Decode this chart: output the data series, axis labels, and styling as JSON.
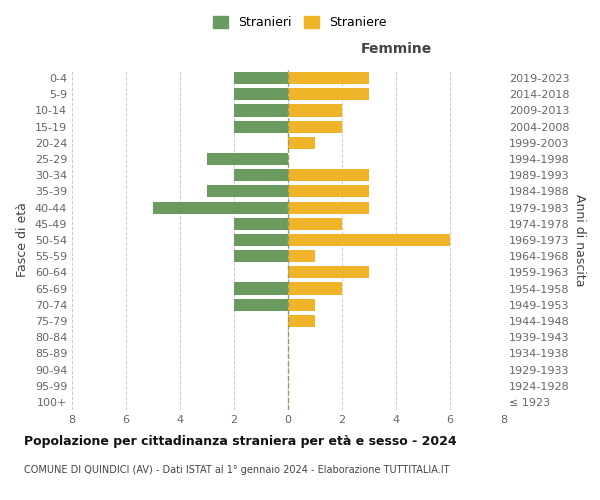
{
  "age_groups": [
    "100+",
    "95-99",
    "90-94",
    "85-89",
    "80-84",
    "75-79",
    "70-74",
    "65-69",
    "60-64",
    "55-59",
    "50-54",
    "45-49",
    "40-44",
    "35-39",
    "30-34",
    "25-29",
    "20-24",
    "15-19",
    "10-14",
    "5-9",
    "0-4"
  ],
  "birth_years": [
    "≤ 1923",
    "1924-1928",
    "1929-1933",
    "1934-1938",
    "1939-1943",
    "1944-1948",
    "1949-1953",
    "1954-1958",
    "1959-1963",
    "1964-1968",
    "1969-1973",
    "1974-1978",
    "1979-1983",
    "1984-1988",
    "1989-1993",
    "1994-1998",
    "1999-2003",
    "2004-2008",
    "2009-2013",
    "2014-2018",
    "2019-2023"
  ],
  "males": [
    0,
    0,
    0,
    0,
    0,
    0,
    2,
    2,
    0,
    2,
    2,
    2,
    5,
    3,
    2,
    3,
    0,
    2,
    2,
    2,
    2
  ],
  "females": [
    0,
    0,
    0,
    0,
    0,
    1,
    1,
    2,
    3,
    1,
    6,
    2,
    3,
    3,
    3,
    0,
    1,
    2,
    2,
    3,
    3
  ],
  "male_color": "#6a9a5f",
  "female_color": "#f0b429",
  "background_color": "#ffffff",
  "grid_color": "#cccccc",
  "title": "Popolazione per cittadinanza straniera per età e sesso - 2024",
  "subtitle": "COMUNE DI QUINDICI (AV) - Dati ISTAT al 1° gennaio 2024 - Elaborazione TUTTITALIA.IT",
  "xlabel_right": "Femmine",
  "ylabel_left": "Fasce di età",
  "ylabel_right": "Anni di nascita",
  "legend_male": "Stranieri",
  "legend_female": "Straniere",
  "xlim": 8
}
